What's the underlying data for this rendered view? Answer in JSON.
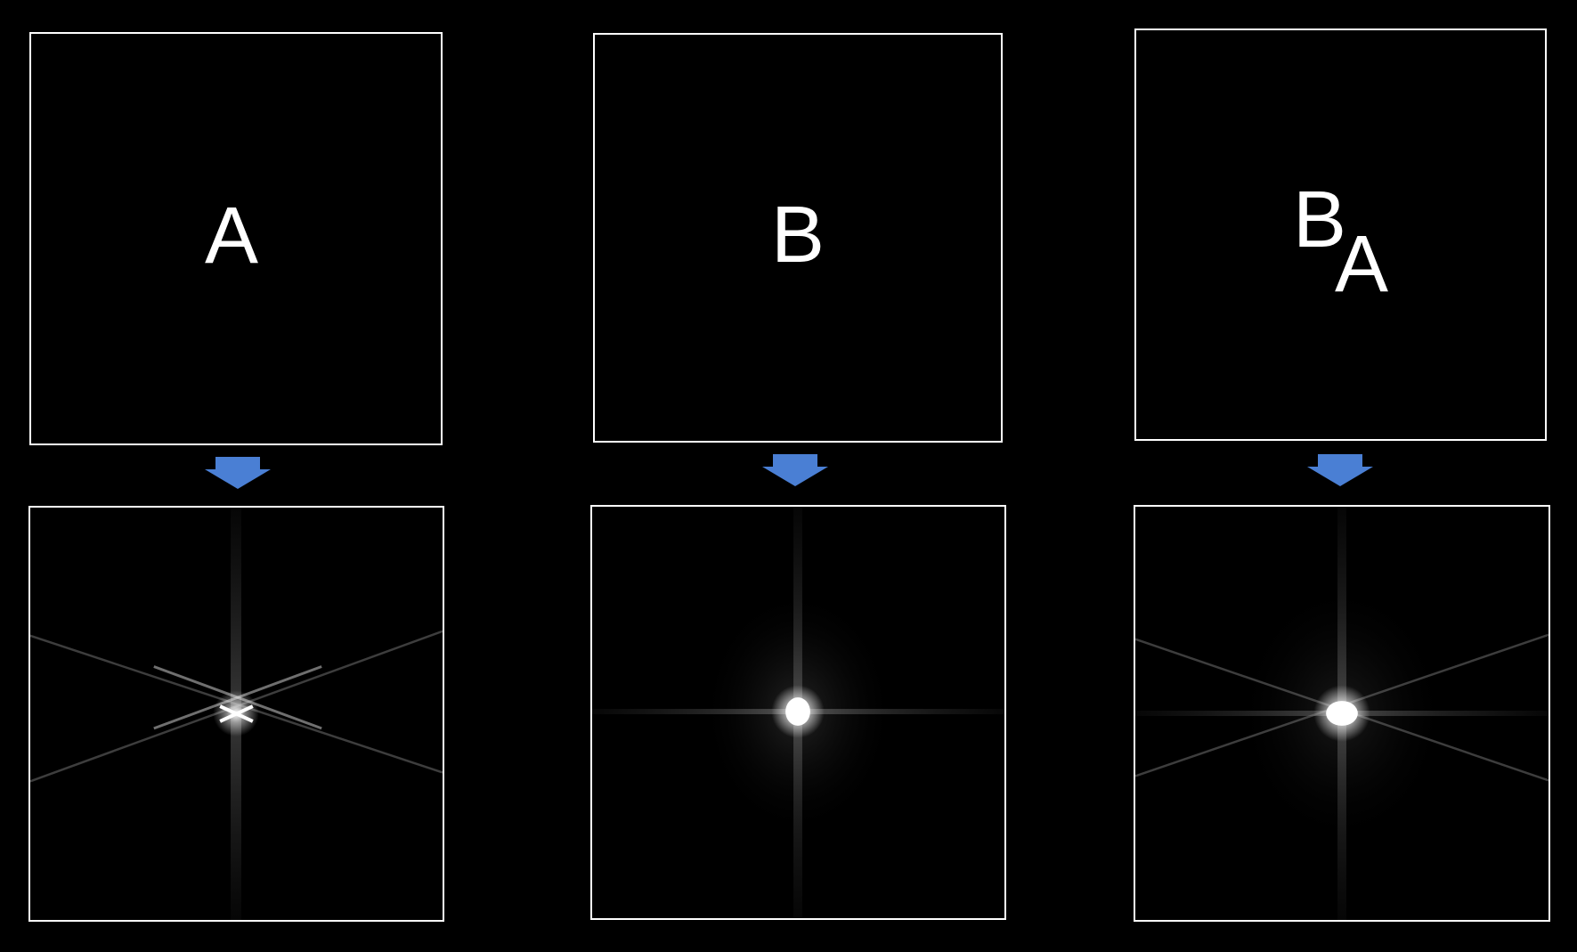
{
  "panels": [
    {
      "id": "A",
      "letters": [
        "A"
      ],
      "spectrum": {
        "streak_angles_deg": [
          0,
          90,
          20,
          160
        ],
        "star_orientation": "X"
      }
    },
    {
      "id": "B",
      "letters": [
        "B"
      ],
      "spectrum": {
        "streak_angles_deg": [
          0,
          90
        ],
        "star_orientation": "cross"
      }
    },
    {
      "id": "BA",
      "letters": [
        "B",
        "A"
      ],
      "spectrum": {
        "streak_angles_deg": [
          0,
          90,
          20,
          160
        ],
        "star_orientation": "combined"
      }
    }
  ],
  "colors": {
    "background": "#000000",
    "border": "#ffffff",
    "text": "#ffffff",
    "arrow": "#4a7fd4"
  },
  "icons": {
    "arrow": "down-arrow-icon"
  }
}
